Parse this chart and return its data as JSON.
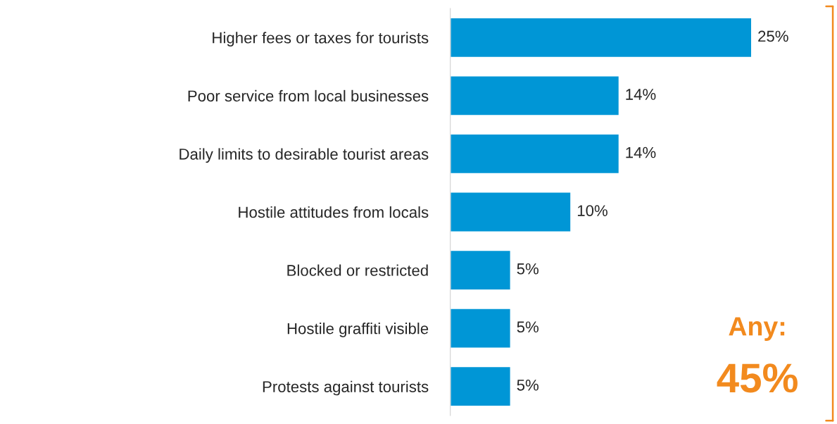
{
  "chart_data": {
    "type": "bar",
    "orientation": "horizontal",
    "categories": [
      "Higher fees or taxes for tourists",
      "Poor service from local businesses",
      "Daily limits to desirable tourist areas",
      "Hostile attitudes from locals",
      "Blocked or restricted",
      "Hostile graffiti visible",
      "Protests against tourists"
    ],
    "values": [
      25,
      14,
      14,
      10,
      5,
      5,
      5
    ],
    "value_labels": [
      "25%",
      "14%",
      "14%",
      "10%",
      "5%",
      "5%",
      "5%"
    ],
    "color": "#0096d6",
    "annotations": [
      "Any:",
      "45%"
    ],
    "grid": false,
    "legend": false
  }
}
